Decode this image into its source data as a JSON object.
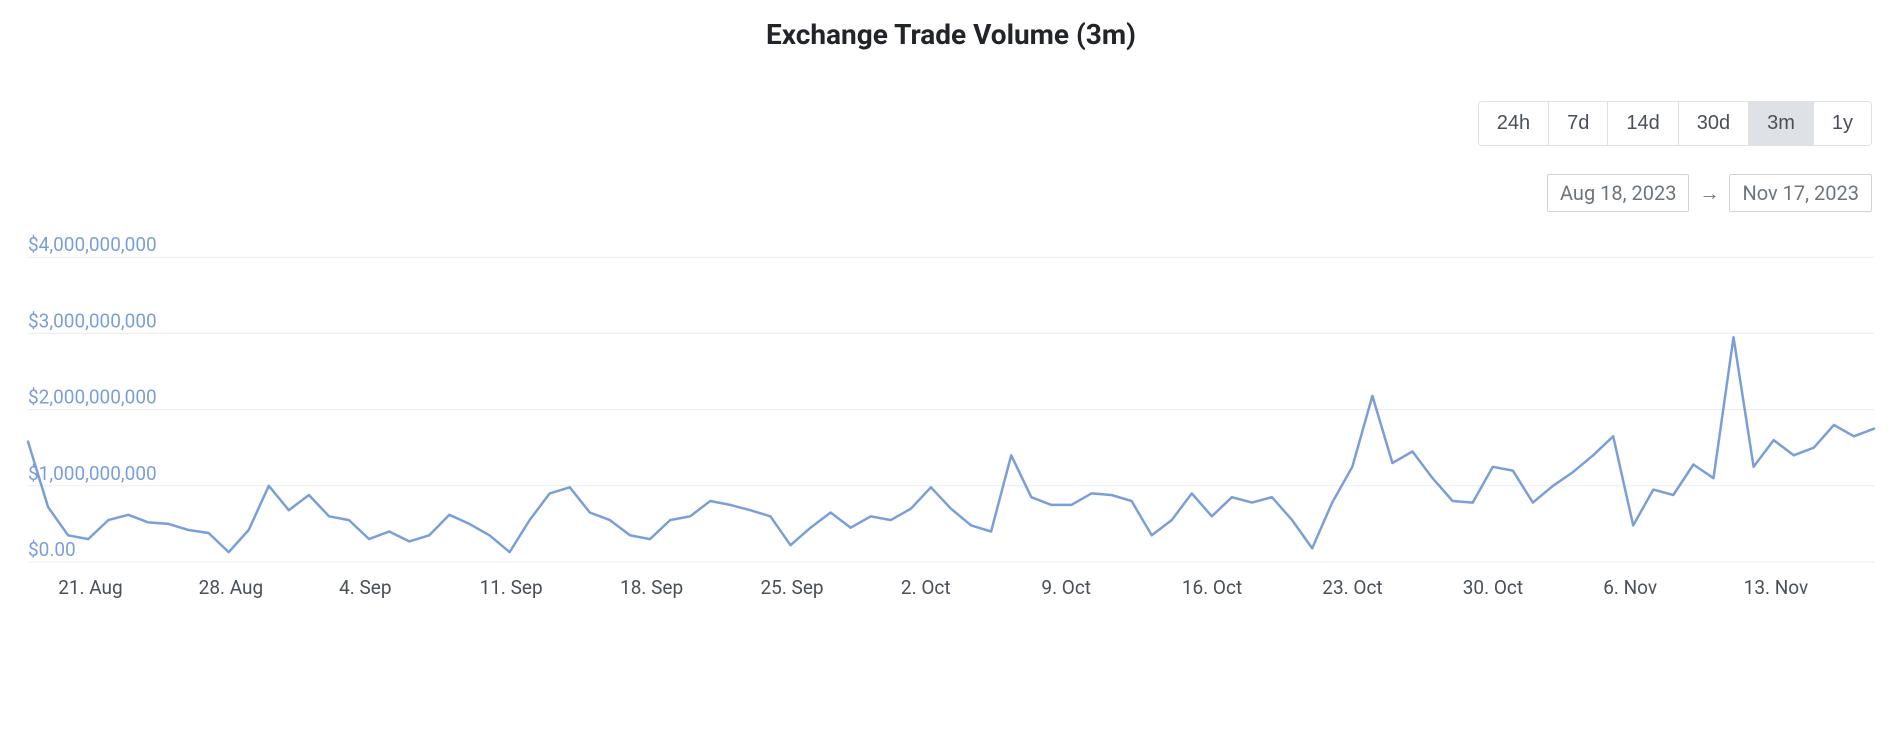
{
  "title": "Exchange Trade Volume (3m)",
  "range_buttons": [
    "24h",
    "7d",
    "14d",
    "30d",
    "3m",
    "1y"
  ],
  "active_range": "3m",
  "date_from": "Aug 18, 2023",
  "date_to": "Nov 17, 2023",
  "chart": {
    "type": "line",
    "line_color": "#7a9fd8",
    "line_width": 2.5,
    "grid_color": "#e9ecef",
    "y_label_color": "#7a9fd8",
    "x_label_color": "#495057",
    "background": "#ffffff",
    "ylim": [
      0,
      4200000000
    ],
    "yticks": [
      {
        "v": 0,
        "label": "$0.00"
      },
      {
        "v": 1000000000,
        "label": "$1,000,000,000"
      },
      {
        "v": 2000000000,
        "label": "$2,000,000,000"
      },
      {
        "v": 3000000000,
        "label": "$3,000,000,000"
      },
      {
        "v": 4000000000,
        "label": "$4,000,000,000"
      }
    ],
    "xticks": [
      {
        "i": 3,
        "label": "21. Aug"
      },
      {
        "i": 10,
        "label": "28. Aug"
      },
      {
        "i": 17,
        "label": "4. Sep"
      },
      {
        "i": 24,
        "label": "11. Sep"
      },
      {
        "i": 31,
        "label": "18. Sep"
      },
      {
        "i": 38,
        "label": "25. Sep"
      },
      {
        "i": 45,
        "label": "2. Oct"
      },
      {
        "i": 52,
        "label": "9. Oct"
      },
      {
        "i": 59,
        "label": "16. Oct"
      },
      {
        "i": 66,
        "label": "23. Oct"
      },
      {
        "i": 73,
        "label": "30. Oct"
      },
      {
        "i": 80,
        "label": "6. Nov"
      },
      {
        "i": 87,
        "label": "13. Nov"
      }
    ],
    "values": [
      1580000000,
      720000000,
      350000000,
      300000000,
      550000000,
      620000000,
      520000000,
      500000000,
      420000000,
      380000000,
      130000000,
      420000000,
      1000000000,
      680000000,
      880000000,
      600000000,
      550000000,
      300000000,
      400000000,
      270000000,
      350000000,
      620000000,
      500000000,
      350000000,
      130000000,
      550000000,
      900000000,
      980000000,
      650000000,
      550000000,
      350000000,
      300000000,
      550000000,
      600000000,
      800000000,
      750000000,
      680000000,
      600000000,
      220000000,
      450000000,
      650000000,
      450000000,
      600000000,
      550000000,
      700000000,
      980000000,
      700000000,
      480000000,
      400000000,
      1400000000,
      850000000,
      750000000,
      750000000,
      900000000,
      880000000,
      800000000,
      350000000,
      550000000,
      900000000,
      600000000,
      850000000,
      780000000,
      850000000,
      550000000,
      180000000,
      780000000,
      1250000000,
      2180000000,
      1300000000,
      1450000000,
      1100000000,
      800000000,
      780000000,
      1250000000,
      1200000000,
      780000000,
      1000000000,
      1180000000,
      1400000000,
      1650000000,
      480000000,
      950000000,
      880000000,
      1280000000,
      1100000000,
      2950000000,
      1250000000,
      1600000000,
      1400000000,
      1500000000,
      1800000000,
      1650000000,
      1750000000
    ]
  }
}
